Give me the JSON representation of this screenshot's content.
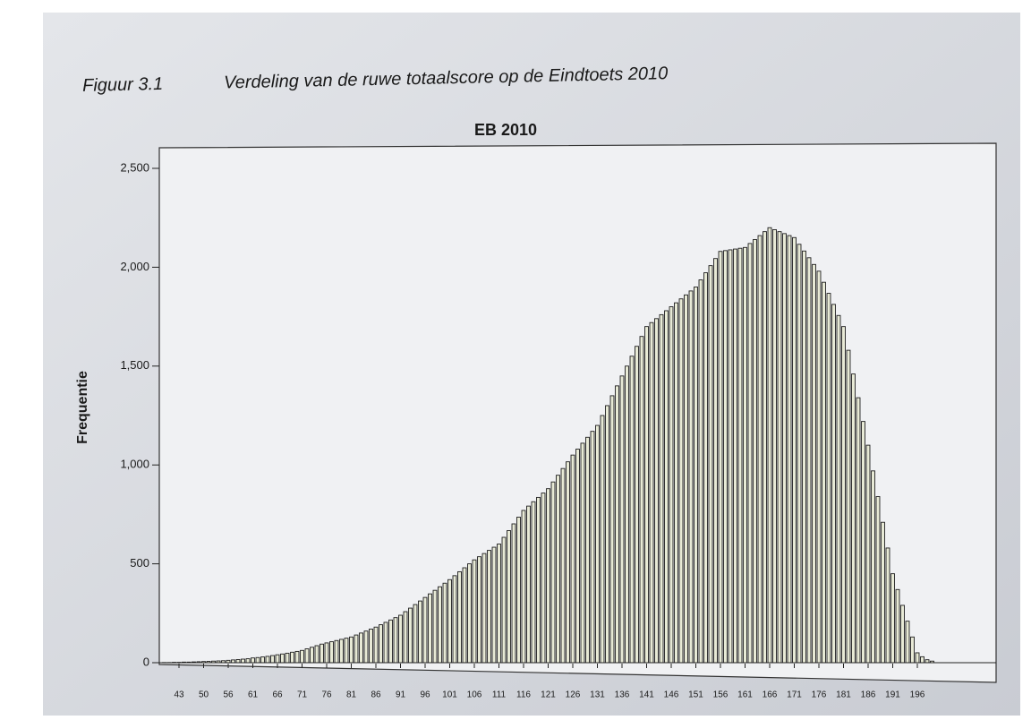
{
  "chart_data": {
    "type": "bar",
    "figure_label": "Figuur 3.1",
    "figure_title": "Verdeling van de ruwe totaalscore op de Eindtoets 2010",
    "title": "EB 2010",
    "y_label": "Frequentie",
    "color": "#e8ead6",
    "categories": [
      null,
      null,
      null,
      43,
      null,
      null,
      null,
      null,
      50,
      null,
      null,
      null,
      null,
      56,
      null,
      null,
      null,
      null,
      61,
      null,
      null,
      null,
      null,
      66,
      null,
      null,
      null,
      null,
      71,
      null,
      null,
      null,
      null,
      76,
      null,
      null,
      null,
      null,
      81,
      null,
      null,
      null,
      null,
      86,
      null,
      null,
      null,
      null,
      91,
      null,
      null,
      null,
      null,
      96,
      null,
      null,
      null,
      null,
      101,
      null,
      null,
      null,
      null,
      106,
      null,
      null,
      null,
      null,
      111,
      null,
      null,
      null,
      null,
      116,
      null,
      null,
      null,
      null,
      121,
      null,
      null,
      null,
      null,
      126,
      null,
      null,
      null,
      null,
      131,
      null,
      null,
      null,
      null,
      136,
      null,
      null,
      null,
      null,
      141,
      null,
      null,
      null,
      null,
      146,
      null,
      null,
      null,
      null,
      151,
      null,
      null,
      null,
      null,
      156,
      null,
      null,
      null,
      null,
      161,
      null,
      null,
      null,
      null,
      166,
      null,
      null,
      null,
      null,
      171,
      null,
      null,
      null,
      null,
      176,
      null,
      null,
      null,
      null,
      181,
      null,
      null,
      null,
      null,
      186,
      null,
      null,
      null,
      null,
      191,
      null,
      null,
      null,
      null,
      196,
      null,
      null,
      null
    ],
    "values": [
      1,
      1,
      2,
      2,
      3,
      3,
      4,
      5,
      6,
      7,
      8,
      9,
      10,
      12,
      14,
      16,
      18,
      20,
      24,
      26,
      29,
      32,
      36,
      40,
      44,
      48,
      53,
      57,
      62,
      70,
      78,
      86,
      94,
      100,
      106,
      112,
      118,
      124,
      130,
      140,
      150,
      160,
      170,
      180,
      192,
      204,
      216,
      228,
      240,
      258,
      276,
      294,
      312,
      330,
      348,
      366,
      384,
      402,
      420,
      440,
      460,
      480,
      500,
      520,
      536,
      552,
      568,
      584,
      600,
      634,
      668,
      702,
      736,
      770,
      792,
      814,
      836,
      858,
      880,
      914,
      948,
      982,
      1016,
      1050,
      1080,
      1110,
      1140,
      1170,
      1200,
      1250,
      1300,
      1350,
      1400,
      1450,
      1500,
      1550,
      1600,
      1650,
      1700,
      1720,
      1740,
      1760,
      1780,
      1800,
      1820,
      1840,
      1860,
      1880,
      1900,
      1936,
      1972,
      2008,
      2044,
      2080,
      2084,
      2088,
      2092,
      2096,
      2100,
      2120,
      2140,
      2160,
      2180,
      2200,
      2190,
      2180,
      2170,
      2160,
      2150,
      2116,
      2082,
      2048,
      2014,
      1980,
      1924,
      1868,
      1812,
      1756,
      1700,
      1580,
      1460,
      1340,
      1220,
      1100,
      970,
      840,
      710,
      580,
      450,
      370,
      290,
      210,
      130,
      50,
      30,
      15,
      8
    ],
    "ylim": [
      0,
      2500
    ],
    "yticks": [
      0,
      500,
      {
        "value": 1000,
        "label": "1,000"
      },
      {
        "value": 1500,
        "label": "1,500"
      },
      {
        "value": 2000,
        "label": "2,000"
      },
      {
        "value": 2500,
        "label": "2,500"
      }
    ]
  }
}
